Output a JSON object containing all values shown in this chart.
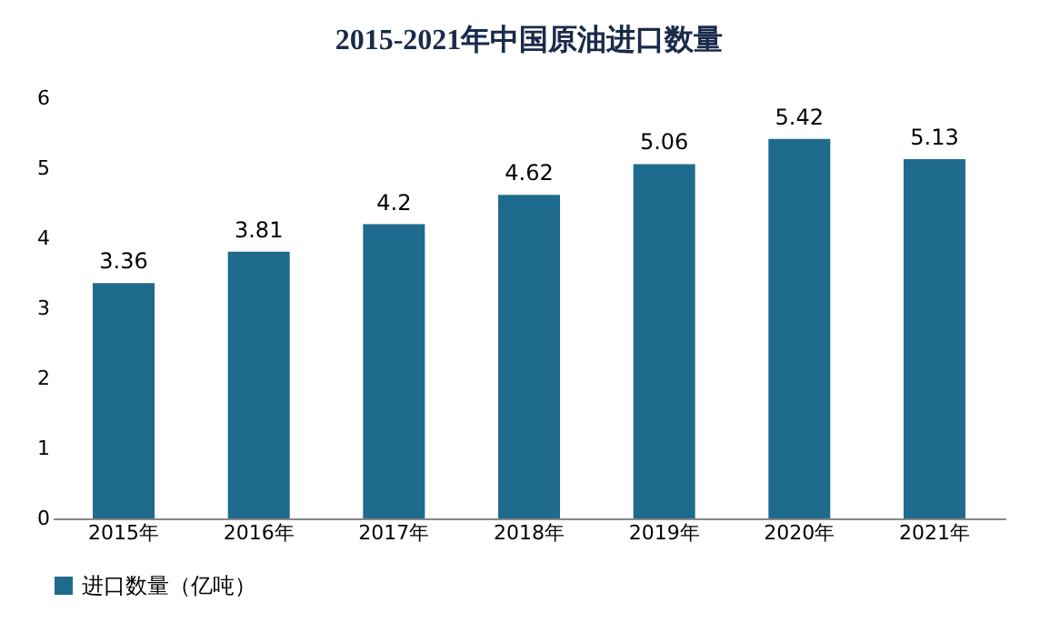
{
  "chart_data": {
    "type": "bar",
    "title": "2015-2021年中国原油进口数量",
    "categories": [
      "2015年",
      "2016年",
      "2017年",
      "2018年",
      "2019年",
      "2020年",
      "2021年"
    ],
    "series": [
      {
        "name": "进口数量（亿吨）",
        "color": "#1f6b8e",
        "values": [
          3.36,
          3.81,
          4.2,
          4.62,
          5.06,
          5.42,
          5.13
        ]
      }
    ],
    "ylim": [
      0,
      6
    ],
    "yticks": [
      0,
      1,
      2,
      3,
      4,
      5,
      6
    ],
    "grid": false,
    "legend": "bottom",
    "data_labels": true
  }
}
